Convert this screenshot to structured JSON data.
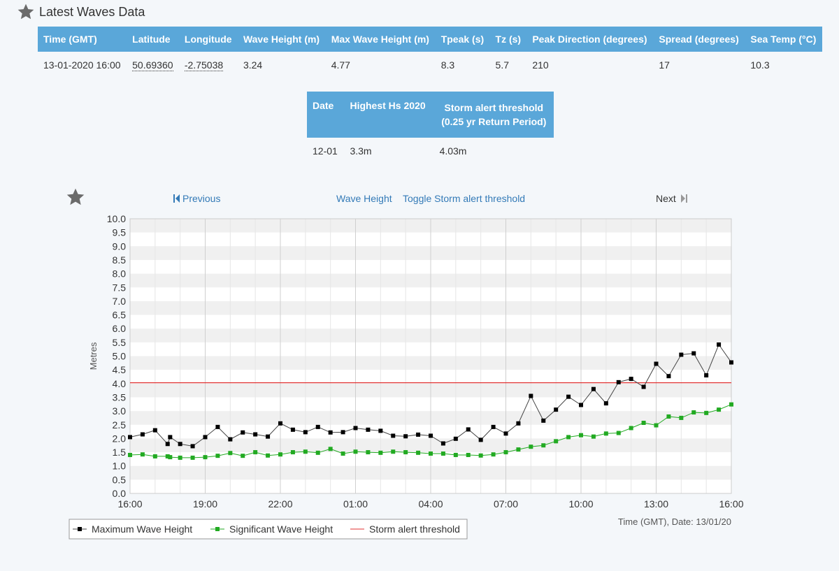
{
  "header": {
    "title": "Latest Waves Data"
  },
  "latest_table": {
    "columns": [
      "Time (GMT)",
      "Latitude",
      "Longitude",
      "Wave Height (m)",
      "Max Wave Height (m)",
      "Tpeak (s)",
      "Tz (s)",
      "Peak Direction (degrees)",
      "Spread (degrees)",
      "Sea Temp (°C)"
    ],
    "row": [
      "13-01-2020 16:00",
      "50.69360",
      "-2.75038",
      "3.24",
      "4.77",
      "8.3",
      "5.7",
      "210",
      "17",
      "10.3"
    ]
  },
  "highest_table": {
    "col_date": "Date",
    "col_hs": "Highest Hs 2020",
    "col_threshold_line1": "Storm alert threshold",
    "col_threshold_line2": "(0.25 yr Return Period)",
    "row": [
      "12-01",
      "3.3m",
      "4.03m"
    ]
  },
  "nav": {
    "previous": "Previous",
    "wave_height": "Wave Height",
    "toggle": "Toggle Storm alert threshold",
    "next": "Next"
  },
  "colors": {
    "header_bg": "#5aa7d9",
    "max_line": "#444444",
    "sig_line": "#22aa22",
    "threshold": "#e03030"
  },
  "chart_data": {
    "type": "line",
    "ylabel": "Metres",
    "xlabel": "Time (GMT), Date: 13/01/20",
    "ylim": [
      0,
      10
    ],
    "yticks": [
      "0.0",
      "0.5",
      "1.0",
      "1.5",
      "2.0",
      "2.5",
      "3.0",
      "3.5",
      "4.0",
      "4.5",
      "5.0",
      "5.5",
      "6.0",
      "6.5",
      "7.0",
      "7.5",
      "8.0",
      "8.5",
      "9.0",
      "9.5",
      "10.0"
    ],
    "xlim_hours": [
      0,
      24
    ],
    "xticks": [
      {
        "h": 0,
        "label": "16:00"
      },
      {
        "h": 3,
        "label": "19:00"
      },
      {
        "h": 6,
        "label": "22:00"
      },
      {
        "h": 9,
        "label": "01:00"
      },
      {
        "h": 12,
        "label": "04:00"
      },
      {
        "h": 15,
        "label": "07:00"
      },
      {
        "h": 18,
        "label": "10:00"
      },
      {
        "h": 21,
        "label": "13:00"
      },
      {
        "h": 24,
        "label": "16:00"
      }
    ],
    "threshold": 4.03,
    "legend": [
      "Maximum Wave Height",
      "Significant Wave Height",
      "Storm alert threshold"
    ],
    "series": [
      {
        "name": "Maximum Wave Height",
        "points": [
          [
            0,
            2.05
          ],
          [
            0.5,
            2.15
          ],
          [
            1,
            2.3
          ],
          [
            1.5,
            1.8
          ],
          [
            1.6,
            2.05
          ],
          [
            2,
            1.8
          ],
          [
            2.5,
            1.72
          ],
          [
            3,
            2.05
          ],
          [
            3.5,
            2.42
          ],
          [
            4,
            1.97
          ],
          [
            4.5,
            2.22
          ],
          [
            5,
            2.15
          ],
          [
            5.5,
            2.07
          ],
          [
            6,
            2.55
          ],
          [
            6.5,
            2.32
          ],
          [
            7,
            2.23
          ],
          [
            7.5,
            2.42
          ],
          [
            8,
            2.22
          ],
          [
            8.5,
            2.23
          ],
          [
            9,
            2.38
          ],
          [
            9.5,
            2.32
          ],
          [
            10,
            2.28
          ],
          [
            10.5,
            2.1
          ],
          [
            11,
            2.08
          ],
          [
            11.5,
            2.14
          ],
          [
            12,
            2.1
          ],
          [
            12.5,
            1.82
          ],
          [
            13,
            1.99
          ],
          [
            13.5,
            2.33
          ],
          [
            14,
            1.95
          ],
          [
            14.5,
            2.42
          ],
          [
            15,
            2.18
          ],
          [
            15.5,
            2.55
          ],
          [
            16,
            3.55
          ],
          [
            16.5,
            2.65
          ],
          [
            17,
            3.05
          ],
          [
            17.5,
            3.52
          ],
          [
            18,
            3.22
          ],
          [
            18.5,
            3.8
          ],
          [
            19,
            3.28
          ],
          [
            19.5,
            4.05
          ],
          [
            20,
            4.17
          ],
          [
            20.5,
            3.88
          ],
          [
            21,
            4.72
          ],
          [
            21.5,
            4.27
          ],
          [
            22,
            5.05
          ],
          [
            22.5,
            5.1
          ],
          [
            23,
            4.3
          ],
          [
            23.5,
            5.42
          ],
          [
            24,
            4.77
          ]
        ]
      },
      {
        "name": "Significant Wave Height",
        "points": [
          [
            0,
            1.4
          ],
          [
            0.5,
            1.42
          ],
          [
            1,
            1.35
          ],
          [
            1.5,
            1.35
          ],
          [
            1.6,
            1.32
          ],
          [
            2,
            1.3
          ],
          [
            2.5,
            1.3
          ],
          [
            3,
            1.32
          ],
          [
            3.5,
            1.37
          ],
          [
            4,
            1.47
          ],
          [
            4.5,
            1.37
          ],
          [
            5,
            1.5
          ],
          [
            5.5,
            1.38
          ],
          [
            6,
            1.42
          ],
          [
            6.5,
            1.5
          ],
          [
            7,
            1.52
          ],
          [
            7.5,
            1.48
          ],
          [
            8,
            1.62
          ],
          [
            8.5,
            1.45
          ],
          [
            9,
            1.52
          ],
          [
            9.5,
            1.5
          ],
          [
            10,
            1.48
          ],
          [
            10.5,
            1.52
          ],
          [
            11,
            1.5
          ],
          [
            11.5,
            1.48
          ],
          [
            12,
            1.45
          ],
          [
            12.5,
            1.45
          ],
          [
            13,
            1.4
          ],
          [
            13.5,
            1.4
          ],
          [
            14,
            1.38
          ],
          [
            14.5,
            1.42
          ],
          [
            15,
            1.5
          ],
          [
            15.5,
            1.6
          ],
          [
            16,
            1.7
          ],
          [
            16.5,
            1.75
          ],
          [
            17,
            1.9
          ],
          [
            17.5,
            2.05
          ],
          [
            18,
            2.12
          ],
          [
            18.5,
            2.07
          ],
          [
            19,
            2.18
          ],
          [
            19.5,
            2.2
          ],
          [
            20,
            2.38
          ],
          [
            20.5,
            2.57
          ],
          [
            21,
            2.48
          ],
          [
            21.5,
            2.8
          ],
          [
            22,
            2.75
          ],
          [
            22.5,
            2.95
          ],
          [
            23,
            2.93
          ],
          [
            23.5,
            3.05
          ],
          [
            24,
            3.24
          ]
        ]
      }
    ]
  }
}
